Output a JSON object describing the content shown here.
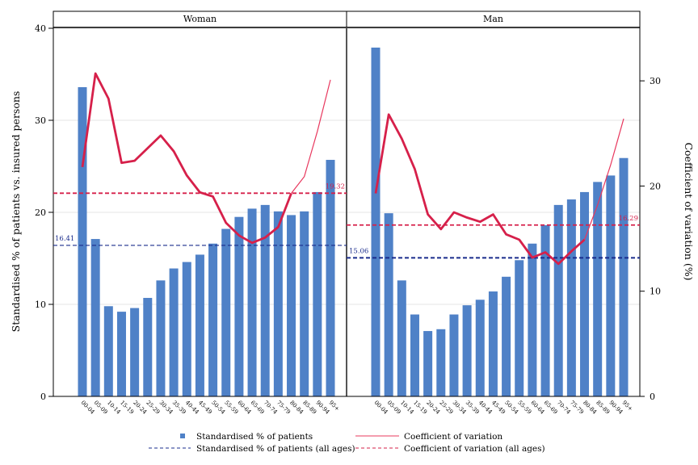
{
  "chart_data": {
    "type": "bar",
    "panels": [
      "Woman",
      "Man"
    ],
    "categories": [
      "00-04",
      "05-09",
      "10-14",
      "15-19",
      "20-24",
      "25-29",
      "30-34",
      "35-39",
      "40-44",
      "45-49",
      "50-54",
      "55-59",
      "60-64",
      "65-69",
      "70-74",
      "75-79",
      "80-84",
      "85-89",
      "90-94",
      "95+"
    ],
    "ylabel_left": "Standardised % of patients vs. insured persons",
    "ylabel_right": "Coefficient of variation (%)",
    "ylim_left": [
      0,
      40
    ],
    "yticks_left": [
      0,
      10,
      20,
      30,
      40
    ],
    "ylim_right": [
      0,
      35
    ],
    "yticks_right": [
      0,
      10,
      20,
      30
    ],
    "grid": true,
    "legend_position": "bottom",
    "colors": {
      "bars": "#4f81c7",
      "cv_line": "#d6204a",
      "cv_thin": "#e8385e",
      "avg_pct": "#1a2c8c",
      "avg_cv": "#d6204a"
    },
    "series": [
      {
        "name": "Standardised % of patients",
        "type": "bar",
        "values": {
          "Woman": [
            33.6,
            17.1,
            9.8,
            9.2,
            9.6,
            10.7,
            12.6,
            13.9,
            14.6,
            15.4,
            16.6,
            18.2,
            19.5,
            20.4,
            20.8,
            20.1,
            19.7,
            20.1,
            22.2,
            25.7
          ],
          "Man": [
            37.9,
            19.9,
            12.6,
            8.9,
            7.1,
            7.3,
            8.9,
            9.9,
            10.5,
            11.4,
            13.0,
            14.8,
            16.6,
            18.6,
            20.8,
            21.4,
            22.2,
            23.3,
            24.0,
            25.9
          ]
        }
      },
      {
        "name": "Coefficient of variation",
        "type": "line",
        "values": {
          "Woman": [
            21.8,
            30.7,
            28.3,
            22.2,
            22.4,
            23.6,
            24.8,
            23.3,
            21.0,
            19.4,
            19.0,
            16.5,
            15.3,
            14.6,
            15.1,
            16.1,
            19.3,
            20.9,
            25.2,
            30.1
          ],
          "Man": [
            19.3,
            26.8,
            24.5,
            21.6,
            17.3,
            15.9,
            17.5,
            17.0,
            16.6,
            17.3,
            15.4,
            14.9,
            13.2,
            13.7,
            12.6,
            13.8,
            14.9,
            18.2,
            22.0,
            26.4
          ]
        }
      },
      {
        "name": "Standardised % of patients (all ages)",
        "type": "hline",
        "values": {
          "Woman": 16.41,
          "Man": 15.06
        }
      },
      {
        "name": "Coefficient of variation (all ages)",
        "type": "hline",
        "values": {
          "Woman": 19.32,
          "Man": 16.29
        }
      }
    ],
    "annotations": {
      "Woman": {
        "avg_pct": "16.41",
        "avg_cv": "19.32"
      },
      "Man": {
        "avg_pct": "15.06",
        "avg_cv": "16.29"
      }
    }
  }
}
